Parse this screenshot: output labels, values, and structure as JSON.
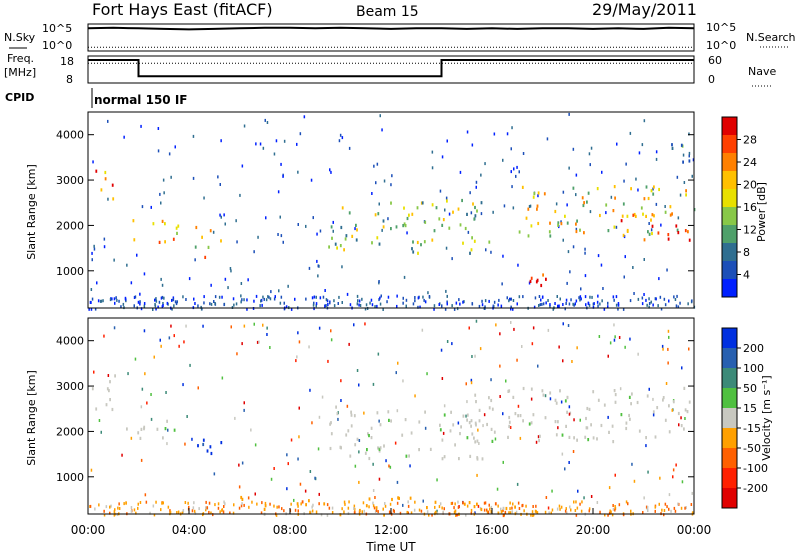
{
  "header": {
    "station": "Fort Hays East (fitACF)",
    "beam": "Beam 15",
    "date": "29/May/2011"
  },
  "left_labels": {
    "nsky": "N.Sky",
    "freq_line1": "Freq.",
    "freq_line2": "[MHz]",
    "cpid": "CPID"
  },
  "right_labels": {
    "nsearch": "N.Search",
    "nave": "Nave"
  },
  "cpid_name": "normal 150 IF",
  "colors": {
    "axis": "#000000",
    "background": "#ffffff",
    "ground_scatter": "#c8c8c0"
  },
  "chart_data": [
    {
      "type": "line",
      "panel": "noise",
      "left_ticks": [
        "10^5",
        "10^0"
      ],
      "right_ticks": [
        "10^5",
        "10^0"
      ],
      "series": [
        {
          "name": "N.Sky",
          "style": "solid",
          "x": [
            0,
            1,
            2,
            3,
            4,
            5,
            6,
            7,
            8,
            9,
            10,
            11,
            12,
            13,
            14,
            15,
            16,
            17,
            18,
            19,
            20,
            21,
            22,
            23,
            24
          ],
          "y": [
            4.2,
            4.3,
            4.2,
            4.1,
            4.0,
            4.1,
            4.2,
            4.3,
            4.3,
            4.2,
            4.3,
            4.2,
            4.1,
            4.2,
            4.2,
            4.1,
            4.2,
            4.1,
            4.2,
            4.2,
            4.1,
            4.2,
            4.1,
            4.3,
            4.2
          ]
        },
        {
          "name": "N.Search",
          "style": "dotted",
          "x": [
            0,
            24
          ],
          "y": [
            0.7,
            0.7
          ]
        }
      ]
    },
    {
      "type": "line",
      "panel": "freq_nave",
      "left_ticks": [
        "18",
        "8"
      ],
      "right_ticks": [
        "60",
        "0"
      ],
      "series": [
        {
          "name": "Freq.",
          "style": "solid",
          "x": [
            0,
            2,
            2,
            14,
            14,
            24
          ],
          "y": [
            16.5,
            16.5,
            10.5,
            10.5,
            16.5,
            16.5
          ]
        },
        {
          "name": "Nave",
          "style": "dotted",
          "x": [
            0,
            24
          ],
          "y": [
            44,
            44
          ]
        }
      ]
    },
    {
      "type": "heatmap",
      "panel": "power",
      "ylabel": "Slant Range [km]",
      "yticks": [
        "1000",
        "2000",
        "3000",
        "4000"
      ],
      "ylim": [
        180,
        4500
      ],
      "xlim": [
        0,
        24
      ],
      "colorbar": {
        "label": "Power [dB]",
        "ticks": [
          "4",
          "8",
          "12",
          "16",
          "20",
          "24",
          "28"
        ],
        "colors": [
          "#0020ff",
          "#1c4fb8",
          "#2f6e90",
          "#4fa06a",
          "#88c848",
          "#e8e000",
          "#ffc000",
          "#ff8000",
          "#ff4000",
          "#e00000"
        ]
      },
      "features": [
        {
          "t0": 0.0,
          "t1": 1.0,
          "r0": 2550,
          "r1": 3250,
          "level": 0.75
        },
        {
          "t0": 1.5,
          "t1": 3.6,
          "r0": 1650,
          "r1": 2250,
          "level": 0.7
        },
        {
          "t0": 4.2,
          "t1": 5.3,
          "r0": 1300,
          "r1": 2000,
          "level": 0.6
        },
        {
          "t0": 9.5,
          "t1": 16.0,
          "r0": 1400,
          "r1": 2600,
          "level": 0.45
        },
        {
          "t0": 16.5,
          "t1": 18.3,
          "r0": 550,
          "r1": 1000,
          "level": 0.95
        },
        {
          "t0": 17.0,
          "t1": 24.0,
          "r0": 1800,
          "r1": 2900,
          "level": 0.55
        },
        {
          "t0": 21.0,
          "t1": 24.0,
          "r0": 1700,
          "r1": 2300,
          "level": 0.85
        },
        {
          "t0": 22.5,
          "t1": 23.8,
          "r0": 3400,
          "r1": 3900,
          "level": 0.35
        }
      ]
    },
    {
      "type": "heatmap",
      "panel": "velocity",
      "ylabel": "Slant Range [km]",
      "yticks": [
        "1000",
        "2000",
        "3000",
        "4000"
      ],
      "ylim": [
        180,
        4500
      ],
      "xlim": [
        0,
        24
      ],
      "xticks": [
        "00:00",
        "04:00",
        "08:00",
        "12:00",
        "16:00",
        "20:00",
        "00:00"
      ],
      "xlabel": "Time UT",
      "colorbar": {
        "label": "Velocity [m s⁻¹]",
        "ticks": [
          "200",
          "100",
          "50",
          "15",
          "-15",
          "-50",
          "-100",
          "-200"
        ],
        "colors": [
          "#0030e0",
          "#2860b0",
          "#3c8a78",
          "#50c040",
          "#c8c8c0",
          "#ffa000",
          "#ff6000",
          "#ff2000",
          "#e00000"
        ]
      },
      "features": [
        {
          "t0": 0.0,
          "t1": 1.2,
          "r0": 2500,
          "r1": 3300,
          "kind": "ground"
        },
        {
          "t0": 1.5,
          "t1": 3.5,
          "r0": 1700,
          "r1": 2300,
          "kind": "ground"
        },
        {
          "t0": 4.0,
          "t1": 5.3,
          "r0": 1500,
          "r1": 2100,
          "kind": "positive"
        },
        {
          "t0": 9.5,
          "t1": 16.0,
          "r0": 1400,
          "r1": 2600,
          "kind": "ground"
        },
        {
          "t0": 15.0,
          "t1": 24.0,
          "r0": 1800,
          "r1": 3000,
          "kind": "ground"
        },
        {
          "t0": 6.0,
          "t1": 17.0,
          "r0": 180,
          "r1": 600,
          "kind": "negative"
        }
      ]
    }
  ]
}
